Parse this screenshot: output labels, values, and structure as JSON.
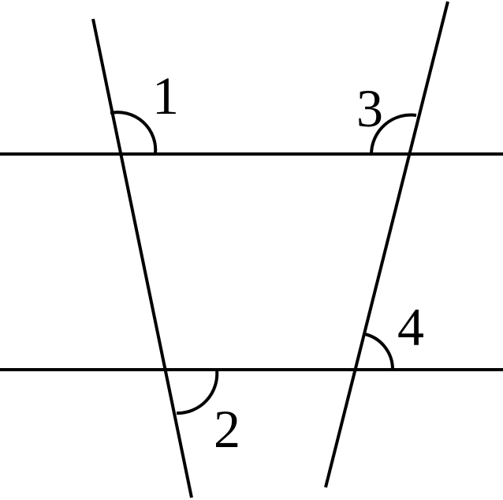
{
  "diagram": {
    "angle_labels": {
      "a1": "1",
      "a2": "2",
      "a3": "3",
      "a4": "4"
    },
    "line_color": "#000000",
    "background": "#ffffff"
  }
}
